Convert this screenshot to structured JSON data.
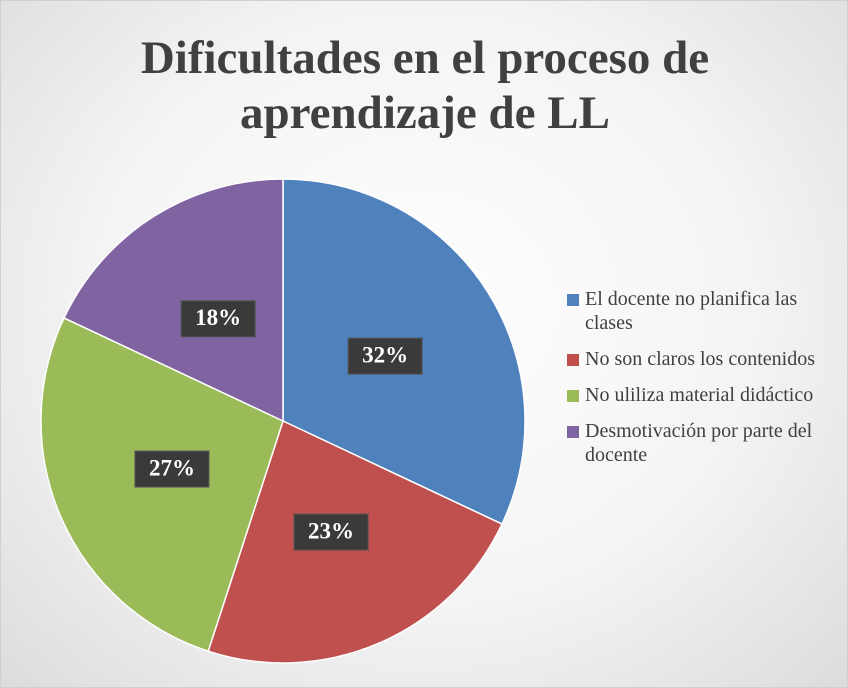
{
  "chart_data": {
    "type": "pie",
    "title": "Dificultades en el proceso de aprendizaje de LL",
    "categories": [
      "El docente no planifica las clases",
      "No son claros los contenidos",
      "No ulilizа material didáctico",
      "Desmotivación por parte del docente"
    ],
    "values": [
      32,
      23,
      27,
      18
    ],
    "value_labels": [
      "32%",
      "23%",
      "27%",
      "18%"
    ],
    "colors": [
      "#4f81bd",
      "#c0504d",
      "#9bbb59",
      "#8064a2"
    ],
    "legend": "right"
  }
}
